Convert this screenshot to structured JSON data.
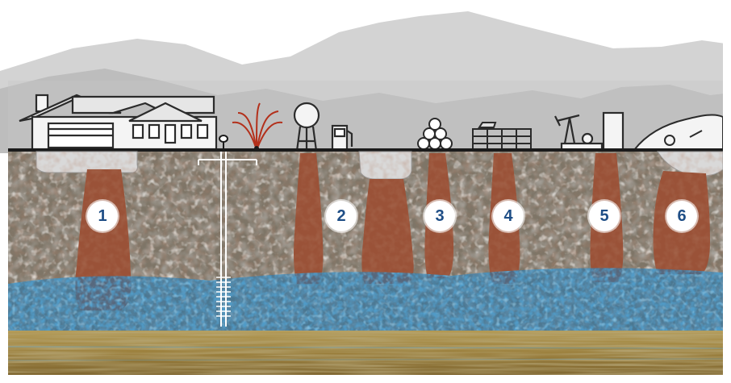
{
  "markers": [
    {
      "label": "1"
    },
    {
      "label": "2"
    },
    {
      "label": "3"
    },
    {
      "label": "4"
    },
    {
      "label": "5"
    },
    {
      "label": "6"
    }
  ],
  "icons": [
    "house-icon",
    "well-icon",
    "fountain-icon",
    "water-tower-icon",
    "fuel-pump-icon",
    "pipe-stack-icon",
    "cattle-pen-icon",
    "oil-pumpjack-icon",
    "storage-tank-icon",
    "landfill-icon"
  ],
  "colors": {
    "sky": "#ffffff",
    "mountains_far": "#c9c9c9",
    "mountains_near": "#b3b3b3",
    "ground_line": "#1b1b1b",
    "soil": "#7e7567",
    "plume": "#9a5238",
    "groundwater": "#1f78b4",
    "bedrock": "#9b7f3c",
    "marker_text": "#1f4e86"
  }
}
